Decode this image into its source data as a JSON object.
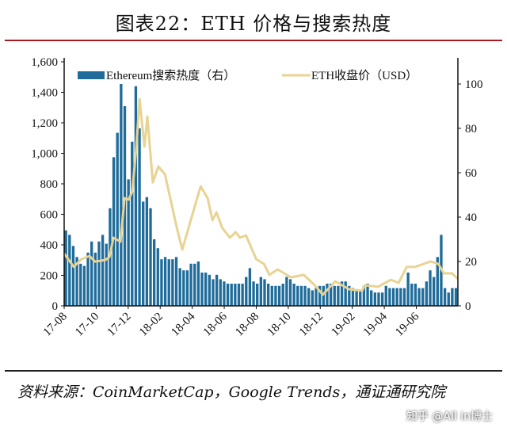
{
  "title": "图表22：ETH 价格与搜索热度",
  "source": "资料来源：CoinMarketCap，Google Trends，通证通研究院",
  "credit": "知乎 @All in博士",
  "chart_data": {
    "type": "bar+line",
    "title": "图表22：ETH 价格与搜索热度",
    "colors": {
      "bars": "#1f6c9a",
      "line": "#e8d393"
    },
    "left_axis": {
      "range": [
        0,
        1600
      ],
      "ticks": [
        "0",
        "200",
        "400",
        "600",
        "800",
        "1,000",
        "1,200",
        "1,400",
        "1,600"
      ],
      "tick_values": [
        0,
        200,
        400,
        600,
        800,
        1000,
        1200,
        1400,
        1600
      ]
    },
    "right_axis": {
      "range": [
        0,
        110
      ],
      "ticks": [
        "0",
        "20",
        "40",
        "60",
        "80",
        "100"
      ],
      "tick_values": [
        0,
        20,
        40,
        60,
        80,
        100
      ]
    },
    "x_ticks": {
      "labels": [
        "17-08",
        "17-10",
        "17-12",
        "18-02",
        "18-04",
        "18-06",
        "18-08",
        "18-10",
        "18-12",
        "19-02",
        "19-04",
        "19-06"
      ],
      "week_index": [
        0,
        8.7,
        17.4,
        26.1,
        34.8,
        43.5,
        52.2,
        60.9,
        69.6,
        78.3,
        87,
        95.7
      ]
    },
    "legend": {
      "placement": "top",
      "bars": "Ethereum搜索热度（右）",
      "line": "ETH收盘价（USD）"
    },
    "series": [
      {
        "name": "Ethereum搜索热度（右）",
        "axis": "right",
        "type": "bar",
        "values": [
          34,
          32,
          27,
          22,
          19,
          18,
          24,
          29,
          24,
          29,
          32,
          28,
          44,
          67,
          78,
          100,
          90,
          57,
          74,
          99,
          80,
          47,
          49,
          44,
          30,
          26,
          21,
          22,
          21,
          21,
          22,
          17,
          16,
          16,
          19,
          19,
          20,
          15,
          15,
          14,
          12,
          14,
          12,
          11,
          10,
          10,
          10,
          10,
          10,
          13,
          17,
          11,
          10,
          13,
          12,
          10,
          9,
          9,
          9,
          10,
          13,
          12,
          10,
          9,
          9,
          9,
          8,
          7,
          8,
          9,
          9,
          10,
          10,
          9,
          9,
          11,
          11,
          9,
          8,
          7,
          7,
          9,
          10,
          7,
          6,
          6,
          6,
          9,
          8,
          8,
          8,
          8,
          8,
          15,
          10,
          10,
          8,
          8,
          11,
          16,
          13,
          22,
          32,
          8,
          6,
          8,
          8
        ]
      },
      {
        "name": "ETH收盘价（USD）",
        "axis": "left",
        "type": "line",
        "points": [
          [
            0,
            343
          ],
          [
            2.6,
            256
          ],
          [
            4.7,
            306
          ],
          [
            6.9,
            327
          ],
          [
            8.4,
            290
          ],
          [
            11.2,
            301
          ],
          [
            12.3,
            320
          ],
          [
            13.4,
            447
          ],
          [
            15.3,
            421
          ],
          [
            16.4,
            706
          ],
          [
            17.5,
            696
          ],
          [
            18.5,
            748
          ],
          [
            19.6,
            1034
          ],
          [
            20.5,
            1356
          ],
          [
            21.8,
            1044
          ],
          [
            22.6,
            1241
          ],
          [
            24.1,
            810
          ],
          [
            25.6,
            914
          ],
          [
            27.4,
            862
          ],
          [
            30.6,
            514
          ],
          [
            32.1,
            369
          ],
          [
            34.7,
            587
          ],
          [
            37.1,
            784
          ],
          [
            39,
            706
          ],
          [
            40.3,
            561
          ],
          [
            41.4,
            613
          ],
          [
            42.9,
            514
          ],
          [
            45,
            447
          ],
          [
            46.6,
            483
          ],
          [
            47.8,
            447
          ],
          [
            49.4,
            462
          ],
          [
            52.2,
            306
          ],
          [
            54.3,
            275
          ],
          [
            55.8,
            203
          ],
          [
            58,
            239
          ],
          [
            61.6,
            187
          ],
          [
            65.1,
            203
          ],
          [
            68.1,
            135
          ],
          [
            70.3,
            73
          ],
          [
            73.7,
            161
          ],
          [
            77.4,
            109
          ],
          [
            81,
            99
          ],
          [
            81.7,
            135
          ],
          [
            85.3,
            125
          ],
          [
            88.8,
            171
          ],
          [
            90.9,
            151
          ],
          [
            93.1,
            255
          ],
          [
            95.3,
            255
          ],
          [
            99.6,
            291
          ],
          [
            101.7,
            275
          ],
          [
            103.2,
            213
          ],
          [
            105.4,
            213
          ],
          [
            107,
            177
          ]
        ]
      }
    ]
  }
}
